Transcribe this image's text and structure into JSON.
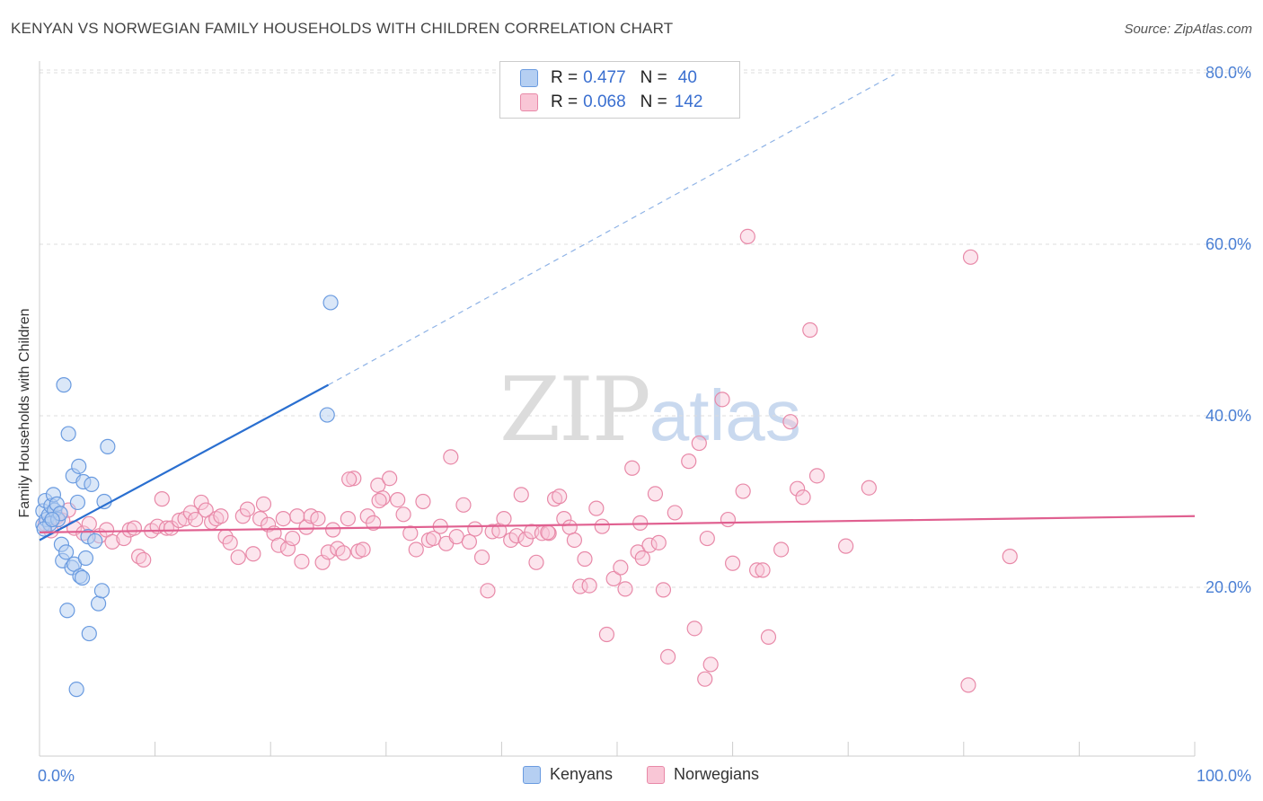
{
  "title": "KENYAN VS NORWEGIAN FAMILY HOUSEHOLDS WITH CHILDREN CORRELATION CHART",
  "source": "Source: ZipAtlas.com",
  "watermark": {
    "zip": "ZIP",
    "atlas": "atlas"
  },
  "legend": {
    "rows": [
      {
        "r_label": "R =",
        "r_value": "0.477",
        "n_label": "N =",
        "n_value": "40",
        "color": "#a9c7f0"
      },
      {
        "r_label": "R =",
        "r_value": "0.068",
        "n_label": "N =",
        "n_value": "142",
        "color": "#f6b5c9"
      }
    ]
  },
  "bottom_legend": [
    {
      "label": "Kenyans",
      "color": "#a9c7f0"
    },
    {
      "label": "Norwegians",
      "color": "#f6b5c9"
    }
  ],
  "chart_data": {
    "type": "scatter",
    "title": "KENYAN VS NORWEGIAN FAMILY HOUSEHOLDS WITH CHILDREN CORRELATION CHART",
    "xlabel": "",
    "ylabel": "Family Households with Children",
    "xlim": [
      0,
      100
    ],
    "ylim": [
      0,
      83
    ],
    "x_tick_labels": [
      "0.0%",
      "100.0%"
    ],
    "y_ticks": [
      20,
      40,
      60,
      80
    ],
    "y_tick_labels": [
      "20.0%",
      "40.0%",
      "60.0%",
      "80.0%"
    ],
    "grid": true,
    "colors": {
      "kenyans": "#6a9be0",
      "kenyans_fill": "#b5cff2",
      "kenyans_line": "#2a6fd0",
      "norwegians": "#e889a8",
      "norwegians_fill": "#f9c6d6",
      "norwegians_line": "#e06090",
      "axis_text": "#4a7fd4"
    },
    "series": [
      {
        "name": "Kenyans",
        "points": [
          [
            0.3,
            27.3
          ],
          [
            0.3,
            28.9
          ],
          [
            0.5,
            30.1
          ],
          [
            0.6,
            27.9
          ],
          [
            0.8,
            28.4
          ],
          [
            0.9,
            27.4
          ],
          [
            1.0,
            29.5
          ],
          [
            1.2,
            30.8
          ],
          [
            1.3,
            29.0
          ],
          [
            1.5,
            29.7
          ],
          [
            1.6,
            27.9
          ],
          [
            1.8,
            28.6
          ],
          [
            1.9,
            25.0
          ],
          [
            2.0,
            23.1
          ],
          [
            2.1,
            43.6
          ],
          [
            2.3,
            24.1
          ],
          [
            2.4,
            17.3
          ],
          [
            2.5,
            37.9
          ],
          [
            2.8,
            22.3
          ],
          [
            2.9,
            33.0
          ],
          [
            3.0,
            22.7
          ],
          [
            3.2,
            8.1
          ],
          [
            3.3,
            29.9
          ],
          [
            3.4,
            34.1
          ],
          [
            3.5,
            21.3
          ],
          [
            3.7,
            21.1
          ],
          [
            3.8,
            32.3
          ],
          [
            4.0,
            23.4
          ],
          [
            4.2,
            25.9
          ],
          [
            4.3,
            14.6
          ],
          [
            4.5,
            32.0
          ],
          [
            4.8,
            25.4
          ],
          [
            5.1,
            18.1
          ],
          [
            5.4,
            19.6
          ],
          [
            5.6,
            30.0
          ],
          [
            5.9,
            36.4
          ],
          [
            24.9,
            40.1
          ],
          [
            25.2,
            53.2
          ],
          [
            0.4,
            26.8
          ],
          [
            1.1,
            27.9
          ]
        ]
      },
      {
        "name": "Norwegians",
        "points": [
          [
            0.5,
            27.4
          ],
          [
            1.0,
            26.6
          ],
          [
            1.5,
            28.2
          ],
          [
            2.0,
            27.8
          ],
          [
            2.5,
            29.0
          ],
          [
            3.0,
            26.9
          ],
          [
            3.8,
            26.3
          ],
          [
            4.3,
            27.4
          ],
          [
            5.2,
            26.0
          ],
          [
            5.8,
            26.7
          ],
          [
            6.3,
            25.3
          ],
          [
            7.3,
            25.7
          ],
          [
            7.8,
            26.7
          ],
          [
            8.2,
            26.9
          ],
          [
            8.6,
            23.6
          ],
          [
            9.0,
            23.2
          ],
          [
            9.7,
            26.6
          ],
          [
            10.2,
            27.1
          ],
          [
            10.6,
            30.3
          ],
          [
            11.0,
            26.9
          ],
          [
            11.4,
            26.9
          ],
          [
            12.1,
            27.8
          ],
          [
            12.6,
            28.0
          ],
          [
            13.1,
            28.7
          ],
          [
            13.5,
            27.9
          ],
          [
            14.0,
            29.9
          ],
          [
            14.4,
            29.0
          ],
          [
            14.9,
            27.6
          ],
          [
            15.3,
            28.0
          ],
          [
            15.7,
            28.3
          ],
          [
            16.1,
            25.9
          ],
          [
            16.5,
            25.2
          ],
          [
            17.2,
            23.5
          ],
          [
            17.6,
            28.3
          ],
          [
            18.0,
            29.1
          ],
          [
            18.5,
            23.9
          ],
          [
            19.1,
            28.0
          ],
          [
            19.4,
            29.7
          ],
          [
            19.8,
            27.3
          ],
          [
            20.3,
            26.3
          ],
          [
            20.7,
            24.9
          ],
          [
            21.1,
            28.0
          ],
          [
            21.5,
            24.5
          ],
          [
            21.9,
            25.7
          ],
          [
            22.3,
            28.3
          ],
          [
            22.7,
            23.0
          ],
          [
            23.1,
            27.0
          ],
          [
            23.5,
            28.3
          ],
          [
            24.1,
            28.0
          ],
          [
            24.5,
            22.9
          ],
          [
            25.0,
            24.1
          ],
          [
            25.4,
            26.7
          ],
          [
            25.8,
            24.5
          ],
          [
            26.3,
            24.0
          ],
          [
            26.7,
            28.0
          ],
          [
            27.2,
            32.7
          ],
          [
            27.6,
            24.2
          ],
          [
            28.0,
            24.4
          ],
          [
            28.4,
            28.3
          ],
          [
            28.9,
            27.5
          ],
          [
            29.3,
            31.9
          ],
          [
            29.7,
            30.4
          ],
          [
            30.3,
            32.7
          ],
          [
            31.0,
            30.2
          ],
          [
            31.5,
            28.5
          ],
          [
            32.1,
            26.3
          ],
          [
            32.6,
            24.4
          ],
          [
            33.2,
            30.0
          ],
          [
            33.7,
            25.5
          ],
          [
            34.1,
            25.7
          ],
          [
            34.7,
            27.1
          ],
          [
            35.2,
            25.1
          ],
          [
            35.6,
            35.2
          ],
          [
            36.1,
            25.9
          ],
          [
            36.7,
            29.6
          ],
          [
            37.2,
            25.3
          ],
          [
            37.7,
            26.8
          ],
          [
            38.3,
            23.5
          ],
          [
            38.8,
            19.6
          ],
          [
            39.2,
            26.5
          ],
          [
            39.8,
            26.6
          ],
          [
            40.2,
            28.0
          ],
          [
            40.8,
            25.5
          ],
          [
            41.3,
            26.0
          ],
          [
            41.7,
            30.8
          ],
          [
            42.1,
            25.6
          ],
          [
            42.6,
            26.5
          ],
          [
            43.0,
            22.9
          ],
          [
            43.5,
            26.3
          ],
          [
            44.1,
            26.3
          ],
          [
            44.6,
            30.3
          ],
          [
            45.0,
            30.6
          ],
          [
            45.4,
            28.0
          ],
          [
            45.9,
            27.0
          ],
          [
            46.3,
            25.5
          ],
          [
            46.8,
            20.1
          ],
          [
            47.2,
            23.3
          ],
          [
            47.6,
            20.2
          ],
          [
            48.2,
            29.2
          ],
          [
            48.7,
            27.1
          ],
          [
            49.1,
            14.5
          ],
          [
            49.7,
            21.0
          ],
          [
            50.3,
            22.3
          ],
          [
            50.7,
            19.8
          ],
          [
            51.3,
            33.9
          ],
          [
            51.8,
            24.1
          ],
          [
            52.2,
            23.4
          ],
          [
            52.8,
            24.9
          ],
          [
            53.3,
            30.9
          ],
          [
            53.6,
            25.2
          ],
          [
            54.0,
            19.7
          ],
          [
            54.4,
            11.9
          ],
          [
            55.0,
            28.7
          ],
          [
            56.2,
            34.7
          ],
          [
            56.7,
            15.2
          ],
          [
            57.1,
            36.8
          ],
          [
            57.6,
            9.3
          ],
          [
            58.1,
            11.0
          ],
          [
            59.1,
            41.9
          ],
          [
            59.6,
            27.9
          ],
          [
            60.0,
            22.8
          ],
          [
            60.9,
            31.2
          ],
          [
            61.3,
            60.9
          ],
          [
            62.1,
            22.0
          ],
          [
            62.6,
            22.0
          ],
          [
            63.1,
            14.2
          ],
          [
            64.2,
            24.4
          ],
          [
            65.0,
            39.3
          ],
          [
            65.6,
            31.5
          ],
          [
            66.1,
            30.5
          ],
          [
            66.7,
            50.0
          ],
          [
            67.3,
            33.0
          ],
          [
            69.8,
            24.8
          ],
          [
            71.8,
            31.6
          ],
          [
            80.4,
            8.6
          ],
          [
            80.6,
            58.5
          ],
          [
            84.0,
            23.6
          ],
          [
            26.8,
            32.6
          ],
          [
            29.4,
            30.1
          ],
          [
            44.0,
            26.4
          ],
          [
            52.0,
            27.5
          ],
          [
            57.8,
            25.7
          ]
        ]
      }
    ],
    "trendlines": [
      {
        "name": "Kenyans",
        "solid_from": [
          0,
          25.5
        ],
        "solid_to": [
          25.0,
          43.6
        ],
        "dashed_to": [
          74.0,
          79.8
        ]
      },
      {
        "name": "Norwegians",
        "from": [
          0,
          26.4
        ],
        "to": [
          100,
          28.3
        ]
      }
    ]
  }
}
